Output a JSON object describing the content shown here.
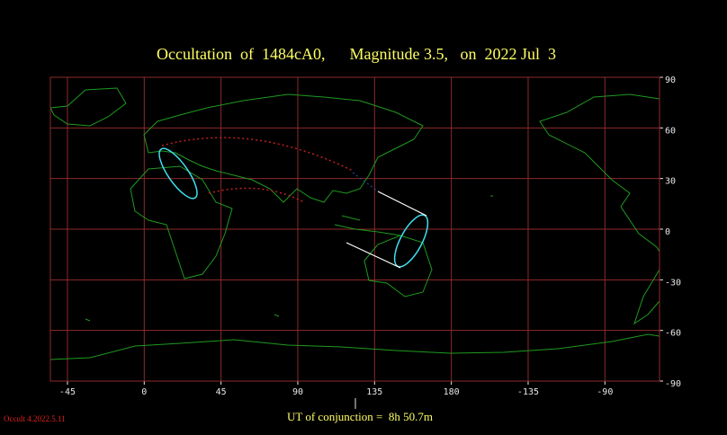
{
  "chart_data": {
    "type": "map",
    "title": "Occultation  of  1484cA0,      Magnitude 3.5,   on  2022 Jul  3",
    "footer": "UT of conjunction =  8h 50.7m",
    "version": "Occult 4.2022.5.11",
    "xlim": [
      -55,
      302
    ],
    "xticks": [
      -45,
      0,
      45,
      90,
      135,
      180,
      {
        "value": 225,
        "label": "-135"
      },
      {
        "value": 270,
        "label": "-90"
      }
    ],
    "ylim": [
      -90,
      90
    ],
    "yticks": [
      90,
      60,
      30,
      0,
      -30,
      -60,
      -90
    ],
    "grid": true,
    "grid_color": "#8e2a2a"
  }
}
